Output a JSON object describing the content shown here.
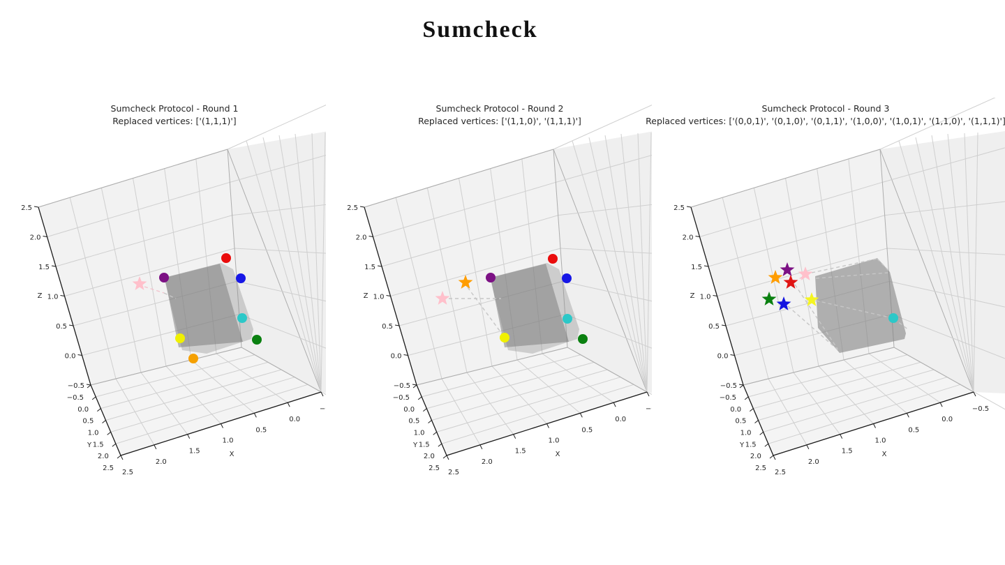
{
  "figure": {
    "title": "Sumcheck"
  },
  "axis": {
    "x_label": "X",
    "y_label": "Y",
    "z_label": "Z",
    "z_ticks": [
      "2.5",
      "2.0",
      "1.5",
      "1.0",
      "0.5",
      "0.0",
      "−0.5"
    ],
    "y_ticks": [
      "−0.5",
      "0.0",
      "0.5",
      "1.0",
      "1.5",
      "2.0",
      "2.5"
    ],
    "x_ticks": [
      "2.5",
      "2.0",
      "1.5",
      "1.0",
      "0.5",
      "0.0",
      "−0.5"
    ]
  },
  "palette": {
    "pane_fill": "#f2f2f2",
    "grid_line": "#cfcfcf",
    "pane_edge": "#adadad",
    "axis_spine": "#1a1a1a",
    "tick_text": "#262626",
    "dash_gray": "#c6c6c6",
    "dash_pink": "#f3c3cd"
  },
  "chart_data": [
    {
      "type": "scatter",
      "round": 1,
      "title": "Sumcheck Protocol - Round 1",
      "subtitle": "Replaced vertices: ['(1,1,1)']",
      "axis_ranges": {
        "x": [
          -0.5,
          2.5
        ],
        "y": [
          -0.5,
          2.5
        ],
        "z": [
          -0.5,
          2.5
        ]
      },
      "cube_layers": [
        {
          "fill": "rgba(145,145,145,0.38)",
          "points": [
            [
              235,
              258
            ],
            [
              317,
              237
            ],
            [
              334,
              246
            ],
            [
              363,
              332
            ],
            [
              360,
              346
            ],
            [
              296,
              367
            ],
            [
              261,
              362
            ]
          ]
        },
        {
          "fill": "rgba(120,120,120,0.50)",
          "points": [
            [
              236,
              258
            ],
            [
              315,
              238
            ],
            [
              348,
              350
            ],
            [
              256,
              358
            ]
          ]
        }
      ],
      "dashed": [
        {
          "color": "dash_pink",
          "pts": [
            [
              207,
              271
            ],
            [
              235,
              280
            ]
          ]
        },
        {
          "color": "dash_gray",
          "pts": [
            [
              235,
              280
            ],
            [
              252,
              288
            ]
          ]
        }
      ],
      "markers": [
        {
          "name": "pink-star",
          "marker": "star",
          "color": "#ffc0cb",
          "x": 200,
          "y": 267
        },
        {
          "name": "purple-dot",
          "marker": "circle",
          "color": "#7c1184",
          "x": 235,
          "y": 258
        },
        {
          "name": "red-dot",
          "marker": "circle",
          "color": "#ea0c0c",
          "x": 324,
          "y": 230
        },
        {
          "name": "blue-dot",
          "marker": "circle",
          "color": "#1717e6",
          "x": 345,
          "y": 259
        },
        {
          "name": "cyan-dot",
          "marker": "circle",
          "color": "#2cc8c8",
          "x": 347,
          "y": 316
        },
        {
          "name": "green-dot",
          "marker": "circle",
          "color": "#0a8010",
          "x": 368,
          "y": 347
        },
        {
          "name": "yellow-dot",
          "marker": "circle",
          "color": "#f0f000",
          "x": 258,
          "y": 345
        },
        {
          "name": "orange-dot",
          "marker": "circle",
          "color": "#f5a000",
          "x": 277,
          "y": 374
        }
      ]
    },
    {
      "type": "scatter",
      "round": 2,
      "title": "Sumcheck Protocol - Round 2",
      "subtitle": "Replaced vertices: ['(1,1,0)', '(1,1,1)']",
      "axis_ranges": {
        "x": [
          -0.5,
          2.5
        ],
        "y": [
          -0.5,
          2.5
        ],
        "z": [
          -0.5,
          2.5
        ]
      },
      "cube_layers": [
        {
          "fill": "rgba(145,145,145,0.38)",
          "points": [
            [
              235,
              258
            ],
            [
              317,
              237
            ],
            [
              334,
              246
            ],
            [
              363,
              332
            ],
            [
              360,
              346
            ],
            [
              296,
              367
            ],
            [
              261,
              362
            ]
          ]
        },
        {
          "fill": "rgba(120,120,120,0.50)",
          "points": [
            [
              236,
              258
            ],
            [
              315,
              238
            ],
            [
              348,
              350
            ],
            [
              256,
              358
            ]
          ]
        }
      ],
      "dashed": [
        {
          "color": "dash_gray",
          "pts": [
            [
              176,
              288
            ],
            [
              251,
              288
            ]
          ]
        },
        {
          "color": "dash_gray",
          "pts": [
            [
              203,
              272
            ],
            [
              254,
              341
            ]
          ]
        }
      ],
      "markers": [
        {
          "name": "pink-star",
          "marker": "star",
          "color": "#ffc0cb",
          "x": 167,
          "y": 288
        },
        {
          "name": "orange-star",
          "marker": "star",
          "color": "#ff9d00",
          "x": 200,
          "y": 265
        },
        {
          "name": "purple-dot",
          "marker": "circle",
          "color": "#7c1184",
          "x": 236,
          "y": 258
        },
        {
          "name": "red-dot",
          "marker": "circle",
          "color": "#ea0c0c",
          "x": 325,
          "y": 231
        },
        {
          "name": "blue-dot",
          "marker": "circle",
          "color": "#1717e6",
          "x": 345,
          "y": 259
        },
        {
          "name": "cyan-dot",
          "marker": "circle",
          "color": "#2cc8c8",
          "x": 346,
          "y": 317
        },
        {
          "name": "green-dot",
          "marker": "circle",
          "color": "#0a8010",
          "x": 368,
          "y": 346
        },
        {
          "name": "yellow-dot",
          "marker": "circle",
          "color": "#f0f000",
          "x": 256,
          "y": 344
        }
      ]
    },
    {
      "type": "scatter",
      "round": 3,
      "title": "Sumcheck Protocol - Round 3",
      "subtitle": "Replaced vertices: ['(0,0,1)', '(0,1,0)', '(0,1,1)', '(1,0,0)', '(1,0,1)', '(1,1,0)', '(1,1,1)']",
      "axis_ranges": {
        "x": [
          -0.5,
          2.5
        ],
        "y": [
          -0.5,
          2.5
        ],
        "z": [
          -0.5,
          2.5
        ]
      },
      "cube_layers": [
        {
          "fill": "rgba(130,130,130,0.60)",
          "points": [
            [
              233,
              256
            ],
            [
              322,
              230
            ],
            [
              340,
              250
            ],
            [
              363,
              338
            ],
            [
              361,
              346
            ],
            [
              268,
              366
            ],
            [
              237,
              330
            ]
          ]
        }
      ],
      "dashed": [
        {
          "color": "dash_gray",
          "pts": [
            [
              228,
              251
            ],
            [
              322,
              231
            ]
          ]
        },
        {
          "color": "dash_gray",
          "pts": [
            [
              322,
              231
            ],
            [
              340,
              250
            ]
          ]
        },
        {
          "color": "dash_gray",
          "pts": [
            [
              234,
              259
            ],
            [
              337,
              251
            ]
          ]
        },
        {
          "color": "dash_gray",
          "pts": [
            [
              204,
              268
            ],
            [
              265,
              360
            ]
          ]
        },
        {
          "color": "dash_gray",
          "pts": [
            [
              194,
              299
            ],
            [
              266,
              362
            ]
          ]
        },
        {
          "color": "dash_gray",
          "pts": [
            [
              234,
              291
            ],
            [
              344,
              316
            ]
          ]
        },
        {
          "color": "dash_gray",
          "pts": [
            [
              346,
              317
            ],
            [
              367,
              333
            ]
          ]
        },
        {
          "color": "dash_pink",
          "pts": [
            [
              215,
              257
            ],
            [
              203,
              264
            ]
          ]
        }
      ],
      "markers": [
        {
          "name": "pink-star",
          "marker": "star",
          "color": "#ffc0cb",
          "x": 219,
          "y": 253
        },
        {
          "name": "purple-star",
          "marker": "star",
          "color": "#7c1184",
          "x": 193,
          "y": 247
        },
        {
          "name": "orange-star",
          "marker": "star",
          "color": "#ff9d00",
          "x": 176,
          "y": 258
        },
        {
          "name": "red-star",
          "marker": "star",
          "color": "#e01414",
          "x": 198,
          "y": 265
        },
        {
          "name": "green-star",
          "marker": "star",
          "color": "#0a8010",
          "x": 167,
          "y": 289
        },
        {
          "name": "blue-star",
          "marker": "star",
          "color": "#1414e0",
          "x": 188,
          "y": 296
        },
        {
          "name": "yellow-star",
          "marker": "star",
          "color": "#f5f520",
          "x": 228,
          "y": 290
        },
        {
          "name": "cyan-dot",
          "marker": "circle",
          "color": "#2cc8c8",
          "x": 345,
          "y": 316
        }
      ]
    }
  ]
}
